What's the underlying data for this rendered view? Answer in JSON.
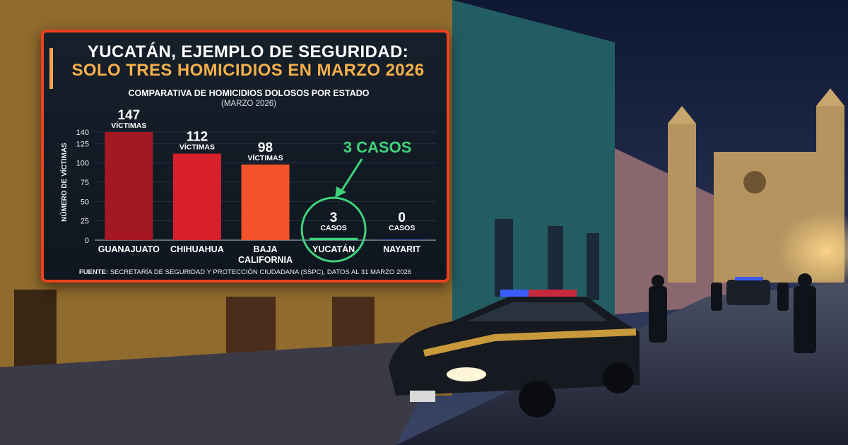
{
  "headline": {
    "line1": "YUCATÁN, EJEMPLO DE SEGURIDAD:",
    "line2": "SOLO TRES HOMICIDIOS EN MARZO 2026"
  },
  "colors": {
    "frame": "#f0411e",
    "headline_accent": "#f6b04a",
    "highlight": "#3fd37a"
  },
  "chart_data": {
    "type": "bar",
    "title": "COMPARATIVA DE HOMICIDIOS DOLOSOS POR ESTADO",
    "subtitle": "(MARZO 2026)",
    "ylabel": "NÚMERO DE VÍCTIMAS",
    "xlabel": "",
    "ylim": [
      0,
      140
    ],
    "yticks": [
      0,
      25,
      50,
      75,
      100,
      125,
      140
    ],
    "grid": true,
    "categories": [
      "GUANAJUATO",
      "CHIHUAHUA",
      "BAJA CALIFORNIA",
      "YUCATÁN",
      "NAYARIT"
    ],
    "values": [
      147,
      112,
      98,
      3,
      0
    ],
    "value_labels": [
      "147",
      "112",
      "98",
      "3",
      "0"
    ],
    "unit_labels": [
      "VÍCTIMAS",
      "VÍCTIMAS",
      "VÍCTIMAS",
      "CASOS",
      "CASOS"
    ],
    "bar_colors": [
      "#a41822",
      "#d8202c",
      "#f2532b",
      "#3fd37a",
      "#3a4f8f"
    ],
    "highlight_category": "YUCATÁN",
    "annotation": "3 CASOS",
    "source_prefix": "FUENTE:",
    "source_text": " SECRETARÍA DE SEGURIDAD Y PROTECCIÓN CIUDADANA (SSPC), DATOS AL 31 MARZO 2026"
  }
}
